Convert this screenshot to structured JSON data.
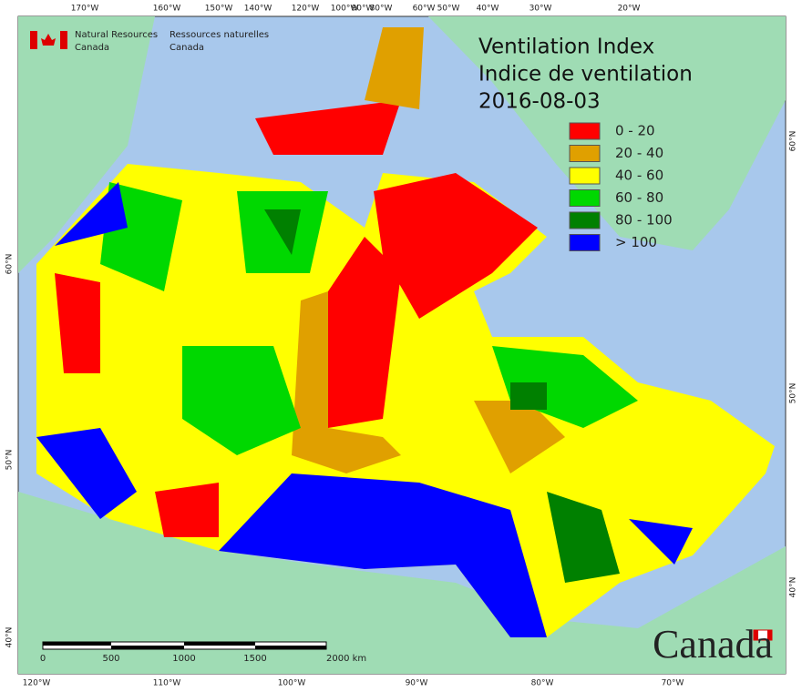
{
  "header": {
    "agency_en": [
      "Natural Resources",
      "Canada"
    ],
    "agency_fr": [
      "Ressources naturelles",
      "Canada"
    ]
  },
  "title": [
    "Ventilation Index",
    "Indice de ventilation",
    "2016-08-03"
  ],
  "legend": [
    {
      "label": "0 - 20",
      "color": "#ff0000"
    },
    {
      "label": "20 - 40",
      "color": "#e0a000"
    },
    {
      "label": "40 - 60",
      "color": "#ffff00"
    },
    {
      "label": "60 - 80",
      "color": "#00d800"
    },
    {
      "label": "80 - 100",
      "color": "#008000"
    },
    {
      "label": "> 100",
      "color": "#0000ff"
    }
  ],
  "graticule": {
    "top": [
      "170°W",
      "160°W",
      "150°W",
      "140°W",
      "120°W",
      "100°W",
      "90°W",
      "80°W",
      "60°W",
      "50°W",
      "40°W",
      "30°W",
      "20°W"
    ],
    "bottom": [
      "120°W",
      "110°W",
      "100°W",
      "90°W",
      "80°W",
      "70°W"
    ],
    "left": [
      "60°N",
      "50°N",
      "40°N"
    ],
    "right": [
      "60°N",
      "50°N",
      "40°N"
    ]
  },
  "scale_bar": [
    "0",
    "500",
    "1000",
    "1500",
    "2000 km"
  ],
  "wordmark": "Canada"
}
